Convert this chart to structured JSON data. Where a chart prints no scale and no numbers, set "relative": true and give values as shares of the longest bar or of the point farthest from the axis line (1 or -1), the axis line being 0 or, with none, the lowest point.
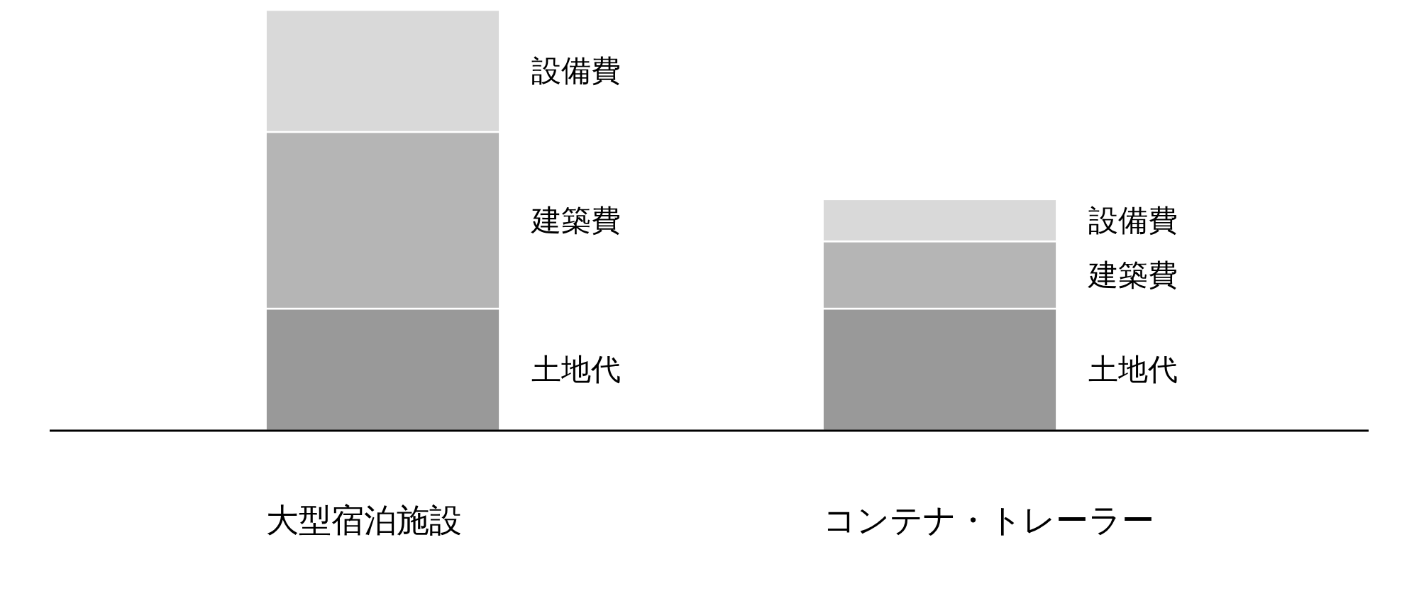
{
  "chart_data": {
    "type": "bar",
    "stacked": true,
    "relative": true,
    "categories": [
      "大型宿泊施設",
      "コンテナ・トレーラー"
    ],
    "series": [
      {
        "name": "土地代",
        "color": "#999999",
        "values": [
          0.29,
          0.29
        ]
      },
      {
        "name": "建築費",
        "color": "#b5b5b5",
        "values": [
          0.42,
          0.16
        ]
      },
      {
        "name": "設備費",
        "color": "#d9d9d9",
        "values": [
          0.29,
          0.1
        ]
      }
    ]
  }
}
